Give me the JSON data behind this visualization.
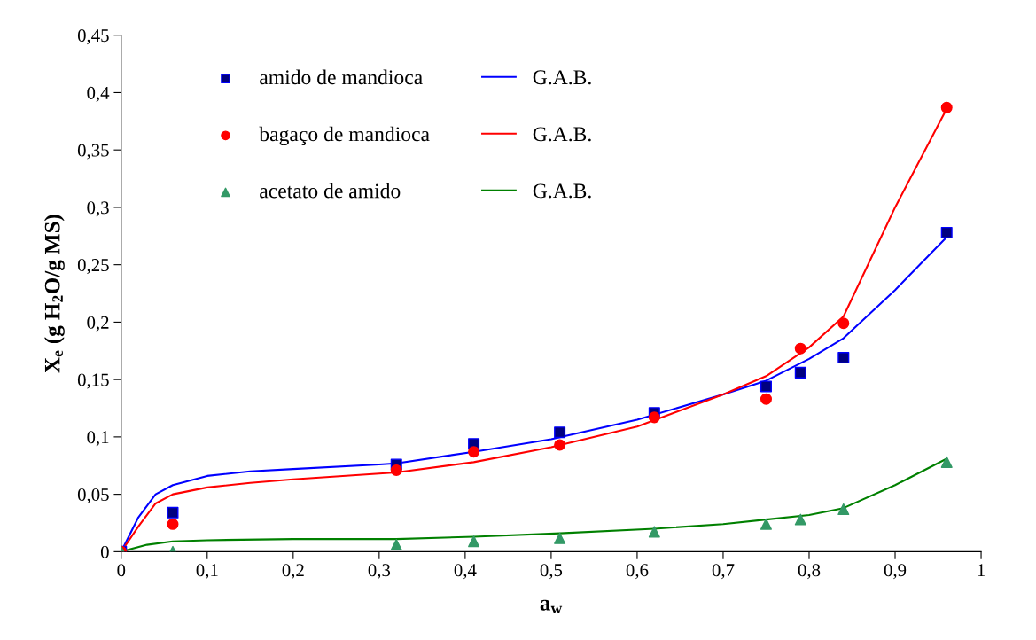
{
  "chart_data": {
    "type": "scatter",
    "xlabel": "a$_{w}$",
    "ylabel": "X$_{e}$ (g H$_{2}$O/g MS)",
    "xlim": [
      0,
      1
    ],
    "ylim": [
      0,
      0.45
    ],
    "xticks": [
      0,
      {
        "value": 0.1,
        "label": "0,1"
      },
      {
        "value": 0.2,
        "label": "0,2"
      },
      {
        "value": 0.3,
        "label": "0,3"
      },
      {
        "value": 0.4,
        "label": "0,4"
      },
      {
        "value": 0.5,
        "label": "0,5"
      },
      {
        "value": 0.6,
        "label": "0,6"
      },
      {
        "value": 0.7,
        "label": "0,7"
      },
      {
        "value": 0.8,
        "label": "0,8"
      },
      {
        "value": 0.9,
        "label": "0,9"
      },
      1
    ],
    "yticks": [
      0,
      {
        "value": 0.05,
        "label": "0,05"
      },
      {
        "value": 0.1,
        "label": "0,1"
      },
      {
        "value": 0.15,
        "label": "0,15"
      },
      {
        "value": 0.2,
        "label": "0,2"
      },
      {
        "value": 0.25,
        "label": "0,25"
      },
      {
        "value": 0.3,
        "label": "0,3"
      },
      {
        "value": 0.35,
        "label": "0,35"
      },
      {
        "value": 0.4,
        "label": "0,4"
      },
      {
        "value": 0.45,
        "label": "0,45"
      }
    ],
    "grid": false,
    "legend": "top left",
    "series": [
      {
        "name": "amido de mandioca",
        "marker": "square",
        "color": "#000080",
        "x": [
          0,
          0.06,
          0.32,
          0.41,
          0.51,
          0.62,
          0.75,
          0.79,
          0.84,
          0.96
        ],
        "values": [
          0,
          0.034,
          0.076,
          0.094,
          0.104,
          0.121,
          0.144,
          0.156,
          0.169,
          0.278
        ]
      },
      {
        "name": "bagaço de mandioca",
        "marker": "circle",
        "color": "#ff0000",
        "x": [
          0,
          0.06,
          0.32,
          0.41,
          0.51,
          0.62,
          0.75,
          0.79,
          0.84,
          0.96
        ],
        "values": [
          0,
          0.024,
          0.071,
          0.087,
          0.093,
          0.117,
          0.133,
          0.177,
          0.199,
          0.387
        ]
      },
      {
        "name": "acetato de amido",
        "marker": "triangle",
        "color": "#339966",
        "x": [
          0,
          0.06,
          0.32,
          0.41,
          0.51,
          0.62,
          0.75,
          0.79,
          0.84,
          0.96
        ],
        "values": [
          0,
          0,
          0.006,
          0.009,
          0.0116,
          0.0173,
          0.024,
          0.028,
          0.037,
          0.078
        ]
      },
      {
        "name": "G.A.B.",
        "type": "line",
        "color": "#0000ff",
        "x": [
          0,
          0.02,
          0.04,
          0.06,
          0.1,
          0.15,
          0.2,
          0.3,
          0.32,
          0.41,
          0.5,
          0.6,
          0.7,
          0.75,
          0.8,
          0.84,
          0.9,
          0.96
        ],
        "values": [
          0,
          0.03,
          0.05,
          0.058,
          0.066,
          0.07,
          0.072,
          0.076,
          0.077,
          0.087,
          0.098,
          0.115,
          0.137,
          0.149,
          0.168,
          0.186,
          0.228,
          0.274
        ]
      },
      {
        "name": "G.A.B.",
        "type": "line",
        "color": "#ff0000",
        "x": [
          0,
          0.02,
          0.04,
          0.06,
          0.1,
          0.15,
          0.2,
          0.3,
          0.32,
          0.41,
          0.5,
          0.6,
          0.7,
          0.75,
          0.8,
          0.84,
          0.9,
          0.96
        ],
        "values": [
          0,
          0.022,
          0.042,
          0.05,
          0.056,
          0.06,
          0.063,
          0.068,
          0.069,
          0.078,
          0.091,
          0.109,
          0.137,
          0.153,
          0.178,
          0.205,
          0.3,
          0.386
        ]
      },
      {
        "name": "G.A.B.",
        "type": "line",
        "color": "#008000",
        "x": [
          0,
          0.03,
          0.06,
          0.1,
          0.2,
          0.32,
          0.41,
          0.51,
          0.62,
          0.7,
          0.75,
          0.8,
          0.84,
          0.9,
          0.96
        ],
        "values": [
          0,
          0.006,
          0.009,
          0.01,
          0.011,
          0.011,
          0.013,
          0.016,
          0.02,
          0.024,
          0.028,
          0.032,
          0.038,
          0.058,
          0.081
        ]
      }
    ]
  }
}
